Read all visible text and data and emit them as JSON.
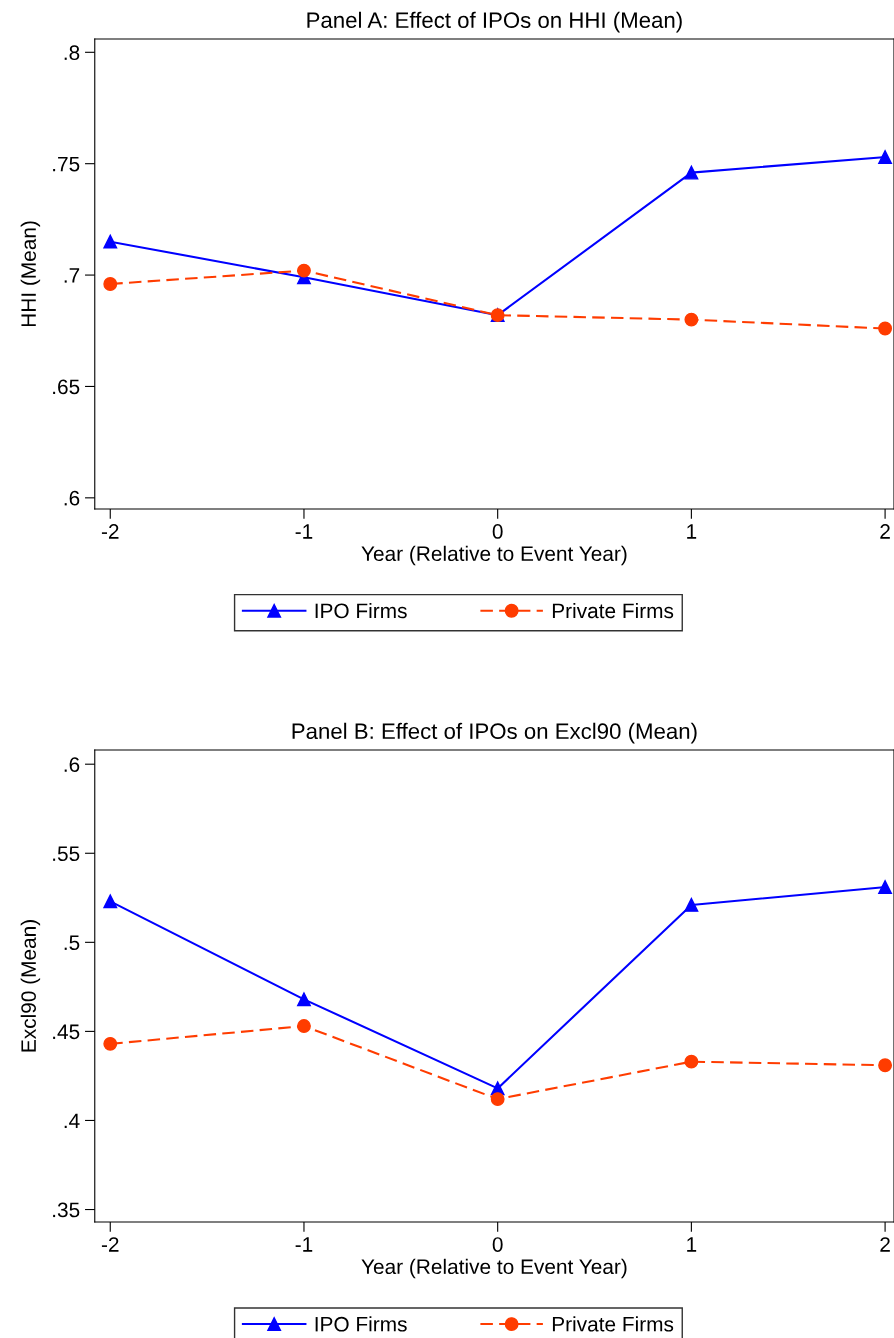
{
  "chart_data": [
    {
      "type": "line",
      "title": "Panel A: Effect of IPOs on HHI (Mean)",
      "xlabel": "Year (Relative to Event Year)",
      "ylabel": "HHI (Mean)",
      "x": [
        -2,
        -1,
        0,
        1,
        2
      ],
      "xlim": [
        -2.08,
        2.046
      ],
      "xticks": [
        -2,
        -1,
        0,
        1,
        2
      ],
      "ylim": [
        0.595,
        0.806
      ],
      "yticks": [
        {
          "value": 0.6,
          "label": ".6"
        },
        {
          "value": 0.65,
          "label": ".65"
        },
        {
          "value": 0.7,
          "label": ".7"
        },
        {
          "value": 0.75,
          "label": ".75"
        },
        {
          "value": 0.8,
          "label": ".8"
        }
      ],
      "grid": false,
      "legend": "bottom",
      "series": [
        {
          "name": "IPO Firms",
          "color": "#0000ff",
          "marker": "triangle",
          "line_style": "solid",
          "values": [
            0.715,
            0.699,
            0.682,
            0.746,
            0.753
          ]
        },
        {
          "name": "Private Firms",
          "color": "#ff3c00",
          "marker": "circle",
          "line_style": "dashed",
          "values": [
            0.696,
            0.702,
            0.682,
            0.68,
            0.676
          ]
        }
      ]
    },
    {
      "type": "line",
      "title": "Panel B: Effect of IPOs on Excl90 (Mean)",
      "xlabel": "Year (Relative to Event Year)",
      "ylabel": "Excl90 (Mean)",
      "x": [
        -2,
        -1,
        0,
        1,
        2
      ],
      "xlim": [
        -2.08,
        2.046
      ],
      "xticks": [
        -2,
        -1,
        0,
        1,
        2
      ],
      "ylim": [
        0.343,
        0.608
      ],
      "yticks": [
        {
          "value": 0.35,
          "label": ".35"
        },
        {
          "value": 0.4,
          "label": ".4"
        },
        {
          "value": 0.45,
          "label": ".45"
        },
        {
          "value": 0.5,
          "label": ".5"
        },
        {
          "value": 0.55,
          "label": ".55"
        },
        {
          "value": 0.6,
          "label": ".6"
        }
      ],
      "grid": false,
      "legend": "bottom",
      "series": [
        {
          "name": "IPO Firms",
          "color": "#0000ff",
          "marker": "triangle",
          "line_style": "solid",
          "values": [
            0.523,
            0.468,
            0.418,
            0.521,
            0.531
          ]
        },
        {
          "name": "Private Firms",
          "color": "#ff3c00",
          "marker": "circle",
          "line_style": "dashed",
          "values": [
            0.443,
            0.453,
            0.412,
            0.433,
            0.431
          ]
        }
      ]
    }
  ]
}
